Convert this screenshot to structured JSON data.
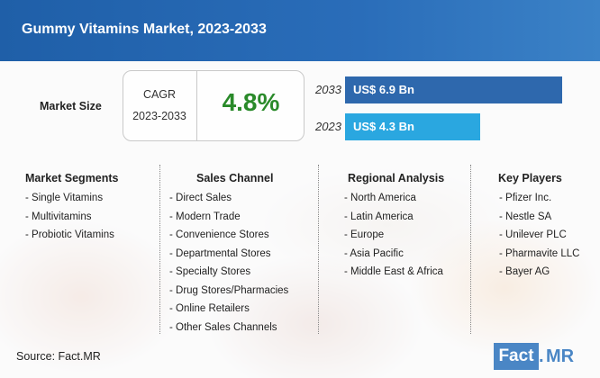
{
  "header": {
    "title": "Gummy Vitamins Market, 2023-2033"
  },
  "market_size": {
    "label": "Market Size",
    "cagr_label": "CAGR",
    "cagr_period": "2023-2033",
    "cagr_value": "4.8%"
  },
  "chart_data": {
    "type": "bar",
    "orientation": "horizontal",
    "categories": [
      "2033",
      "2023"
    ],
    "values": [
      6.9,
      4.3
    ],
    "value_labels": [
      "US$ 6.9 Bn",
      "US$ 4.3 Bn"
    ],
    "colors": [
      "#2e68ad",
      "#2aa7e0"
    ],
    "unit": "US$ Bn",
    "title": "",
    "xlabel": "",
    "ylabel": ""
  },
  "segments": [
    {
      "title": "Market Segments",
      "items": [
        "- Single Vitamins",
        "- Multivitamins",
        "- Probiotic Vitamins"
      ]
    },
    {
      "title": "Sales Channel",
      "items": [
        "- Direct Sales",
        "- Modern Trade",
        "- Convenience Stores",
        "- Departmental Stores",
        "- Specialty Stores",
        "- Drug Stores/Pharmacies",
        "- Online Retailers",
        "- Other Sales Channels"
      ]
    },
    {
      "title": "Regional Analysis",
      "items": [
        "- North America",
        "- Latin America",
        "- Europe",
        "- Asia Pacific",
        "- Middle East & Africa"
      ]
    },
    {
      "title": "Key Players",
      "items": [
        "- Pfizer Inc.",
        "- Nestle SA",
        "- Unilever PLC",
        "- Pharmavite LLC",
        "- Bayer AG"
      ]
    }
  ],
  "footer": {
    "source": "Source: Fact.MR",
    "logo_fact": "Fact",
    "logo_dot": ".",
    "logo_mr": "MR"
  }
}
